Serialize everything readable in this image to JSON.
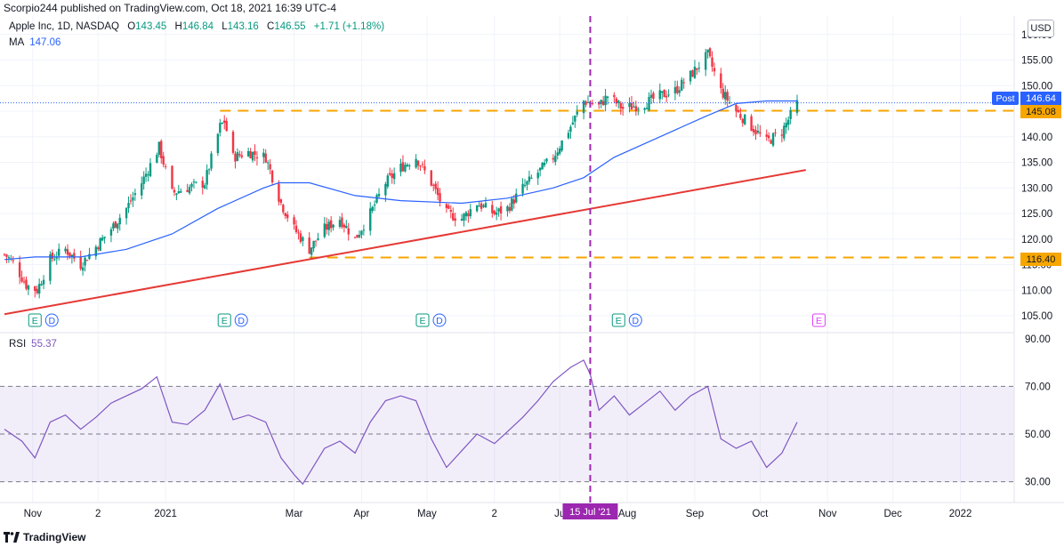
{
  "header": {
    "publish_text": "Scorpio244 published on TradingView.com, Oct 18, 2021 16:39 UTC-4"
  },
  "legend": {
    "symbol": "Apple Inc, 1D, NASDAQ",
    "open_label": "O",
    "open": "143.45",
    "high_label": "H",
    "high": "146.84",
    "low_label": "L",
    "low": "143.16",
    "close_label": "C",
    "close": "146.55",
    "change": "+1.71 (+1.18%)",
    "ma_label": "MA",
    "ma_value": "147.06",
    "rsi_label": "RSI",
    "rsi_value": "55.37"
  },
  "currency": "USD",
  "badges": {
    "post_label": "Post",
    "post_value": "146.64",
    "resistance_value": "145.08",
    "support_value": "116.40",
    "date_marker": "15 Jul '21"
  },
  "footer": {
    "brand": "TradingView"
  },
  "colors": {
    "up": "#089981",
    "down": "#f23645",
    "ma": "#2962ff",
    "rsi": "#7e57c2",
    "level": "#f7a600",
    "trend": "#e53935",
    "marker": "#9c27b0"
  },
  "chart_data": {
    "type": "candlestick",
    "price_axis": {
      "range": [
        103,
        160
      ],
      "ticks": [
        105,
        110,
        115,
        120,
        125,
        130,
        135,
        140,
        145,
        150,
        155,
        160
      ],
      "tick_labels": [
        "105.00",
        "110.00",
        "115.00",
        "120.00",
        "125.00",
        "130.00",
        "135.00",
        "140.00",
        "145.00",
        "150.00",
        "155.00",
        "160.00"
      ]
    },
    "rsi_axis": {
      "range": [
        25,
        90
      ],
      "ticks": [
        30,
        50,
        70,
        90
      ],
      "tick_labels": [
        "30.00",
        "50.00",
        "70.00",
        "90.00"
      ],
      "band": [
        30,
        70
      ]
    },
    "time_axis": {
      "start": "2020-10-19",
      "end": "2022-01-31",
      "ticks": [
        {
          "date": "2020-11-01",
          "label": "Nov"
        },
        {
          "date": "2020-12-01",
          "label": "2"
        },
        {
          "date": "2021-01-01",
          "label": "2021"
        },
        {
          "date": "2021-03-01",
          "label": "Mar"
        },
        {
          "date": "2021-04-01",
          "label": "Apr"
        },
        {
          "date": "2021-05-01",
          "label": "May"
        },
        {
          "date": "2021-06-01",
          "label": "2"
        },
        {
          "date": "2021-07-01",
          "label": "Ju"
        },
        {
          "date": "2021-08-01",
          "label": "Aug"
        },
        {
          "date": "2021-09-01",
          "label": "Sep"
        },
        {
          "date": "2021-10-01",
          "label": "Oct"
        },
        {
          "date": "2021-11-01",
          "label": "Nov"
        },
        {
          "date": "2021-12-01",
          "label": "Dec"
        },
        {
          "date": "2022-01-01",
          "label": "2022"
        }
      ]
    },
    "close_path": [
      [
        "2020-10-19",
        117
      ],
      [
        "2020-10-23",
        115.5
      ],
      [
        "2020-10-29",
        111
      ],
      [
        "2020-11-03",
        110
      ],
      [
        "2020-11-09",
        116
      ],
      [
        "2020-11-16",
        118
      ],
      [
        "2020-11-23",
        115
      ],
      [
        "2020-11-30",
        118.5
      ],
      [
        "2020-12-07",
        122
      ],
      [
        "2020-12-14",
        126
      ],
      [
        "2020-12-21",
        131
      ],
      [
        "2020-12-29",
        138
      ],
      [
        "2021-01-04",
        129
      ],
      [
        "2021-01-11",
        130
      ],
      [
        "2021-01-19",
        131
      ],
      [
        "2021-01-26",
        142
      ],
      [
        "2021-01-28",
        143
      ],
      [
        "2021-02-01",
        136
      ],
      [
        "2021-02-08",
        137
      ],
      [
        "2021-02-16",
        136
      ],
      [
        "2021-02-23",
        127
      ],
      [
        "2021-03-01",
        122
      ],
      [
        "2021-03-08",
        118
      ],
      [
        "2021-03-15",
        122
      ],
      [
        "2021-03-22",
        124
      ],
      [
        "2021-03-29",
        120
      ],
      [
        "2021-04-05",
        125
      ],
      [
        "2021-04-12",
        131
      ],
      [
        "2021-04-19",
        134
      ],
      [
        "2021-04-26",
        136
      ],
      [
        "2021-05-03",
        131
      ],
      [
        "2021-05-10",
        125
      ],
      [
        "2021-05-17",
        124
      ],
      [
        "2021-05-24",
        127
      ],
      [
        "2021-06-01",
        125
      ],
      [
        "2021-06-07",
        126
      ],
      [
        "2021-06-14",
        130
      ],
      [
        "2021-06-21",
        133
      ],
      [
        "2021-06-28",
        136
      ],
      [
        "2021-07-06",
        142
      ],
      [
        "2021-07-12",
        147
      ],
      [
        "2021-07-19",
        146
      ],
      [
        "2021-07-23",
        148
      ],
      [
        "2021-07-30",
        145.5
      ],
      [
        "2021-08-09",
        146.5
      ],
      [
        "2021-08-16",
        148
      ],
      [
        "2021-08-23",
        149
      ],
      [
        "2021-08-30",
        152
      ],
      [
        "2021-09-07",
        156
      ],
      [
        "2021-09-13",
        149
      ],
      [
        "2021-09-20",
        145
      ],
      [
        "2021-09-27",
        142
      ],
      [
        "2021-10-04",
        139
      ],
      [
        "2021-10-11",
        141
      ],
      [
        "2021-10-18",
        146.5
      ]
    ],
    "moving_average": [
      [
        "2020-10-19",
        116
      ],
      [
        "2020-11-02",
        116.5
      ],
      [
        "2020-11-23",
        116.5
      ],
      [
        "2020-12-14",
        118
      ],
      [
        "2021-01-04",
        121
      ],
      [
        "2021-01-25",
        126
      ],
      [
        "2021-02-15",
        130
      ],
      [
        "2021-02-22",
        131
      ],
      [
        "2021-03-08",
        131
      ],
      [
        "2021-03-29",
        128.5
      ],
      [
        "2021-04-19",
        127.5
      ],
      [
        "2021-05-17",
        127
      ],
      [
        "2021-06-07",
        128
      ],
      [
        "2021-06-28",
        130
      ],
      [
        "2021-07-12",
        132
      ],
      [
        "2021-07-26",
        136
      ],
      [
        "2021-08-16",
        140
      ],
      [
        "2021-09-06",
        144
      ],
      [
        "2021-09-20",
        146.5
      ],
      [
        "2021-10-04",
        147
      ],
      [
        "2021-10-18",
        147
      ]
    ],
    "rsi": [
      [
        "2020-10-19",
        52
      ],
      [
        "2020-10-27",
        47
      ],
      [
        "2020-11-02",
        40
      ],
      [
        "2020-11-09",
        55
      ],
      [
        "2020-11-16",
        58
      ],
      [
        "2020-11-23",
        52
      ],
      [
        "2020-11-30",
        57
      ],
      [
        "2020-12-07",
        63
      ],
      [
        "2020-12-14",
        66
      ],
      [
        "2020-12-21",
        69
      ],
      [
        "2020-12-28",
        74
      ],
      [
        "2021-01-04",
        55
      ],
      [
        "2021-01-11",
        54
      ],
      [
        "2021-01-19",
        60
      ],
      [
        "2021-01-26",
        71
      ],
      [
        "2021-02-01",
        56
      ],
      [
        "2021-02-08",
        58
      ],
      [
        "2021-02-16",
        55
      ],
      [
        "2021-02-23",
        40
      ],
      [
        "2021-03-01",
        33
      ],
      [
        "2021-03-05",
        29
      ],
      [
        "2021-03-15",
        44
      ],
      [
        "2021-03-22",
        47
      ],
      [
        "2021-03-29",
        42
      ],
      [
        "2021-04-05",
        55
      ],
      [
        "2021-04-12",
        64
      ],
      [
        "2021-04-19",
        66
      ],
      [
        "2021-04-26",
        64
      ],
      [
        "2021-05-03",
        48
      ],
      [
        "2021-05-10",
        36
      ],
      [
        "2021-05-17",
        43
      ],
      [
        "2021-05-24",
        50
      ],
      [
        "2021-06-01",
        46
      ],
      [
        "2021-06-07",
        51
      ],
      [
        "2021-06-14",
        57
      ],
      [
        "2021-06-21",
        64
      ],
      [
        "2021-06-28",
        72
      ],
      [
        "2021-07-06",
        78
      ],
      [
        "2021-07-12",
        81
      ],
      [
        "2021-07-15",
        75
      ],
      [
        "2021-07-19",
        60
      ],
      [
        "2021-07-26",
        66
      ],
      [
        "2021-08-02",
        58
      ],
      [
        "2021-08-09",
        63
      ],
      [
        "2021-08-16",
        68
      ],
      [
        "2021-08-23",
        60
      ],
      [
        "2021-08-30",
        66
      ],
      [
        "2021-09-07",
        70
      ],
      [
        "2021-09-13",
        48
      ],
      [
        "2021-09-20",
        44
      ],
      [
        "2021-09-27",
        47
      ],
      [
        "2021-10-04",
        36
      ],
      [
        "2021-10-11",
        42
      ],
      [
        "2021-10-18",
        55
      ]
    ],
    "horizontal_levels": [
      {
        "value": 145.08,
        "from": "2021-01-26"
      },
      {
        "value": 116.4,
        "from": "2021-03-08"
      }
    ],
    "trendline": {
      "from": [
        "2020-10-19",
        105.3
      ],
      "to": [
        "2021-10-22",
        133.5
      ]
    },
    "vertical_marker": "2021-07-15",
    "earnings_markers": [
      "2020-11-02",
      "2021-01-28",
      "2021-04-29",
      "2021-07-28"
    ],
    "upcoming_earnings_marker": "2021-10-28",
    "earnings_label": "E",
    "dividend_label": "D"
  }
}
